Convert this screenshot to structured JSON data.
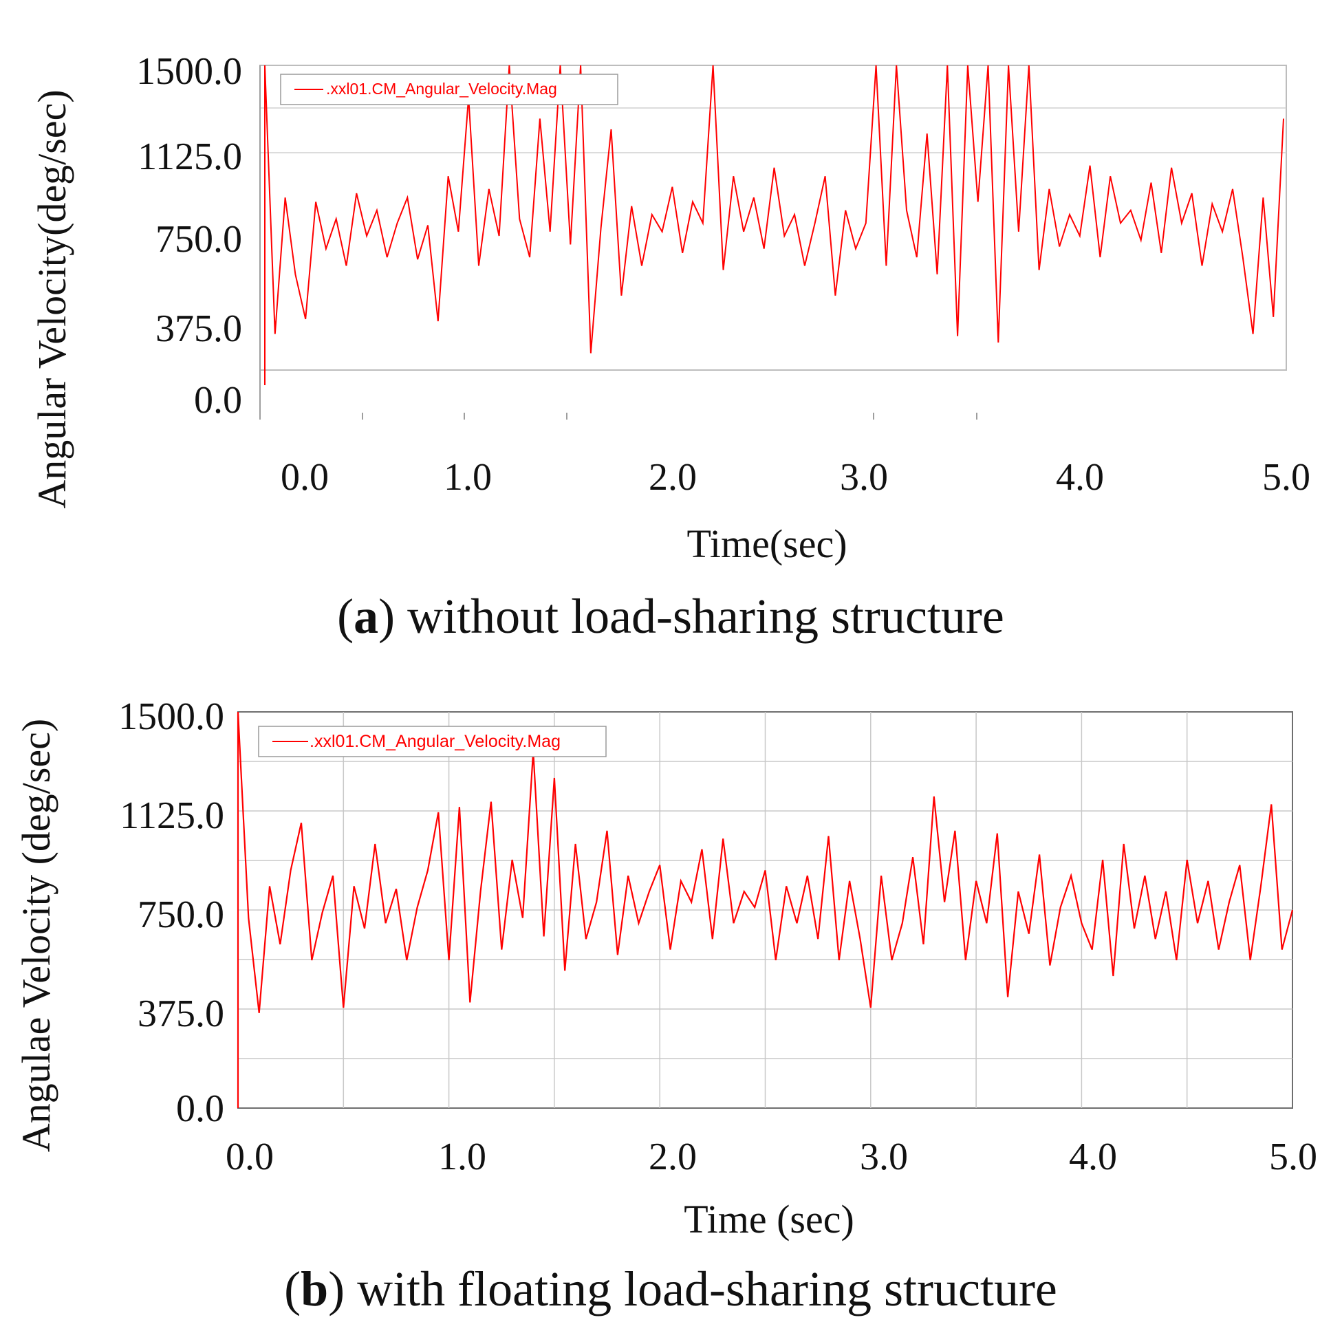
{
  "panels": [
    {
      "id": "a",
      "caption_letter": "a",
      "caption_open": "(",
      "caption_rest": ") without load-sharing structure",
      "ylabel": "Angular Velocity(deg/sec)",
      "xlabel": "Time(sec)",
      "legend": ".xxl01.CM_Angular_Velocity.Mag",
      "yticks": [
        "1500.0",
        "1125.0",
        "750.0",
        "375.0",
        "0.0"
      ],
      "xticks": [
        "0.0",
        "1.0",
        "2.0",
        "3.0",
        "4.0",
        "5.0"
      ],
      "gridlines": false
    },
    {
      "id": "b",
      "caption_letter": "b",
      "caption_open": "(",
      "caption_rest": ") with floating load-sharing structure",
      "ylabel": "Angulae Velocity (deg/sec)",
      "xlabel": "Time (sec)",
      "legend": ".xxl01.CM_Angular_Velocity.Mag",
      "yticks": [
        "1500.0",
        "1125.0",
        "750.0",
        "375.0",
        "0.0"
      ],
      "xticks": [
        "0.0",
        "1.0",
        "2.0",
        "3.0",
        "4.0",
        "5.0"
      ],
      "gridlines": true
    }
  ],
  "chart_data": [
    {
      "type": "line",
      "title": "(a) without load-sharing structure",
      "xlabel": "Time(sec)",
      "ylabel": "Angular Velocity(deg/sec)",
      "xlim": [
        0,
        5
      ],
      "ylim": [
        0,
        1500
      ],
      "series": [
        {
          "name": ".xxl01.CM_Angular_Velocity.Mag",
          "color": "#ff0000",
          "x": [
            0.0,
            0.05,
            0.1,
            0.15,
            0.2,
            0.25,
            0.3,
            0.35,
            0.4,
            0.45,
            0.5,
            0.55,
            0.6,
            0.65,
            0.7,
            0.75,
            0.8,
            0.85,
            0.9,
            0.95,
            1.0,
            1.05,
            1.1,
            1.15,
            1.2,
            1.25,
            1.3,
            1.35,
            1.4,
            1.45,
            1.5,
            1.55,
            1.6,
            1.65,
            1.7,
            1.75,
            1.8,
            1.85,
            1.9,
            1.95,
            2.0,
            2.05,
            2.1,
            2.15,
            2.2,
            2.25,
            2.3,
            2.35,
            2.4,
            2.45,
            2.5,
            2.55,
            2.6,
            2.65,
            2.7,
            2.75,
            2.8,
            2.85,
            2.9,
            2.95,
            3.0,
            3.05,
            3.1,
            3.15,
            3.2,
            3.25,
            3.3,
            3.35,
            3.4,
            3.45,
            3.5,
            3.55,
            3.6,
            3.65,
            3.7,
            3.75,
            3.8,
            3.85,
            3.9,
            3.95,
            4.0,
            4.05,
            4.1,
            4.15,
            4.2,
            4.25,
            4.3,
            4.35,
            4.4,
            4.45,
            4.5,
            4.55,
            4.6,
            4.65,
            4.7,
            4.75,
            4.8,
            4.85,
            4.9,
            4.95,
            5.0
          ],
          "y": [
            1500,
            240,
            880,
            520,
            310,
            860,
            640,
            780,
            560,
            900,
            700,
            820,
            600,
            760,
            880,
            590,
            750,
            300,
            980,
            720,
            1350,
            560,
            920,
            700,
            1500,
            780,
            600,
            1250,
            720,
            1500,
            660,
            1500,
            150,
            740,
            1200,
            420,
            840,
            560,
            800,
            720,
            930,
            620,
            860,
            760,
            1500,
            540,
            980,
            720,
            880,
            640,
            1020,
            700,
            800,
            560,
            760,
            980,
            420,
            820,
            640,
            760,
            1500,
            560,
            1500,
            820,
            600,
            1180,
            520,
            1500,
            230,
            1500,
            860,
            1500,
            200,
            1500,
            720,
            1500,
            540,
            920,
            650,
            800,
            700,
            1030,
            600,
            980,
            760,
            820,
            680,
            950,
            620,
            1020,
            760,
            900,
            560,
            850,
            720,
            920,
            600,
            240,
            880,
            320,
            1250
          ],
          "y_approximate": true
        }
      ]
    },
    {
      "type": "line",
      "title": "(b) with floating load-sharing structure",
      "xlabel": "Time (sec)",
      "ylabel": "Angulae Velocity (deg/sec)",
      "xlim": [
        0,
        5
      ],
      "ylim": [
        0,
        1500
      ],
      "series": [
        {
          "name": ".xxl01.CM_Angular_Velocity.Mag",
          "color": "#ff0000",
          "x": [
            0.0,
            0.05,
            0.1,
            0.15,
            0.2,
            0.25,
            0.3,
            0.35,
            0.4,
            0.45,
            0.5,
            0.55,
            0.6,
            0.65,
            0.7,
            0.75,
            0.8,
            0.85,
            0.9,
            0.95,
            1.0,
            1.05,
            1.1,
            1.15,
            1.2,
            1.25,
            1.3,
            1.35,
            1.4,
            1.45,
            1.5,
            1.55,
            1.6,
            1.65,
            1.7,
            1.75,
            1.8,
            1.85,
            1.9,
            1.95,
            2.0,
            2.05,
            2.1,
            2.15,
            2.2,
            2.25,
            2.3,
            2.35,
            2.4,
            2.45,
            2.5,
            2.55,
            2.6,
            2.65,
            2.7,
            2.75,
            2.8,
            2.85,
            2.9,
            2.95,
            3.0,
            3.05,
            3.1,
            3.15,
            3.2,
            3.25,
            3.3,
            3.35,
            3.4,
            3.45,
            3.5,
            3.55,
            3.6,
            3.65,
            3.7,
            3.75,
            3.8,
            3.85,
            3.9,
            3.95,
            4.0,
            4.05,
            4.1,
            4.15,
            4.2,
            4.25,
            4.3,
            4.35,
            4.4,
            4.45,
            4.5,
            4.55,
            4.6,
            4.65,
            4.7,
            4.75,
            4.8,
            4.85,
            4.9,
            4.95,
            5.0
          ],
          "y": [
            1500,
            720,
            360,
            840,
            620,
            900,
            1080,
            560,
            740,
            880,
            380,
            840,
            680,
            1000,
            700,
            830,
            560,
            760,
            900,
            1120,
            560,
            1140,
            400,
            820,
            1160,
            600,
            940,
            720,
            1350,
            650,
            1250,
            520,
            1000,
            640,
            780,
            1050,
            580,
            880,
            700,
            820,
            920,
            600,
            860,
            780,
            980,
            640,
            1020,
            700,
            820,
            760,
            900,
            560,
            840,
            700,
            880,
            640,
            1030,
            560,
            860,
            640,
            380,
            880,
            560,
            700,
            950,
            620,
            1180,
            780,
            1050,
            560,
            860,
            700,
            1040,
            420,
            820,
            660,
            960,
            540,
            760,
            880,
            700,
            600,
            940,
            500,
            1000,
            680,
            880,
            640,
            820,
            560,
            940,
            700,
            860,
            600,
            780,
            920,
            560,
            840,
            1150,
            600,
            750
          ],
          "y_approximate": true
        }
      ]
    }
  ]
}
